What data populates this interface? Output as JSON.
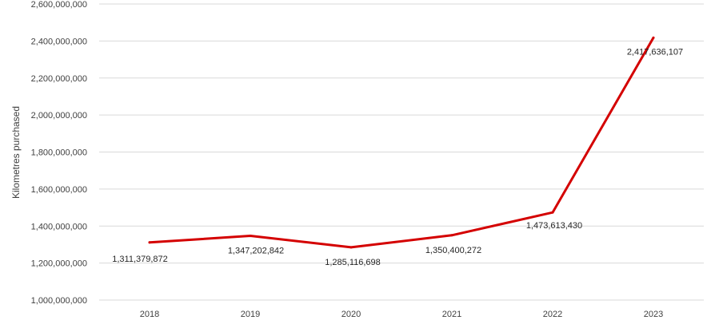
{
  "chart_data": {
    "type": "line",
    "title": "",
    "xlabel": "",
    "ylabel": "Kilometres purchased",
    "categories": [
      "2018",
      "2019",
      "2020",
      "2021",
      "2022",
      "2023"
    ],
    "series": [
      {
        "values": [
          1311379872,
          1347202842,
          1285116698,
          1350400272,
          1473613430,
          2417636107
        ],
        "labels": [
          "1,311,379,872",
          "1,347,202,842",
          "1,285,116,698",
          "1,350,400,272",
          "1,473,613,430",
          "2,417,636,107"
        ],
        "color": "#d40000"
      }
    ],
    "ylim": [
      1000000000,
      2600000000
    ],
    "ytick_step": 200000000,
    "ytick_labels": [
      "1,000,000,000",
      "1,200,000,000",
      "1,400,000,000",
      "1,600,000,000",
      "1,800,000,000",
      "2,000,000,000",
      "2,200,000,000",
      "2,400,000,000",
      "2,600,000,000"
    ],
    "grid": true,
    "legend": "none"
  }
}
